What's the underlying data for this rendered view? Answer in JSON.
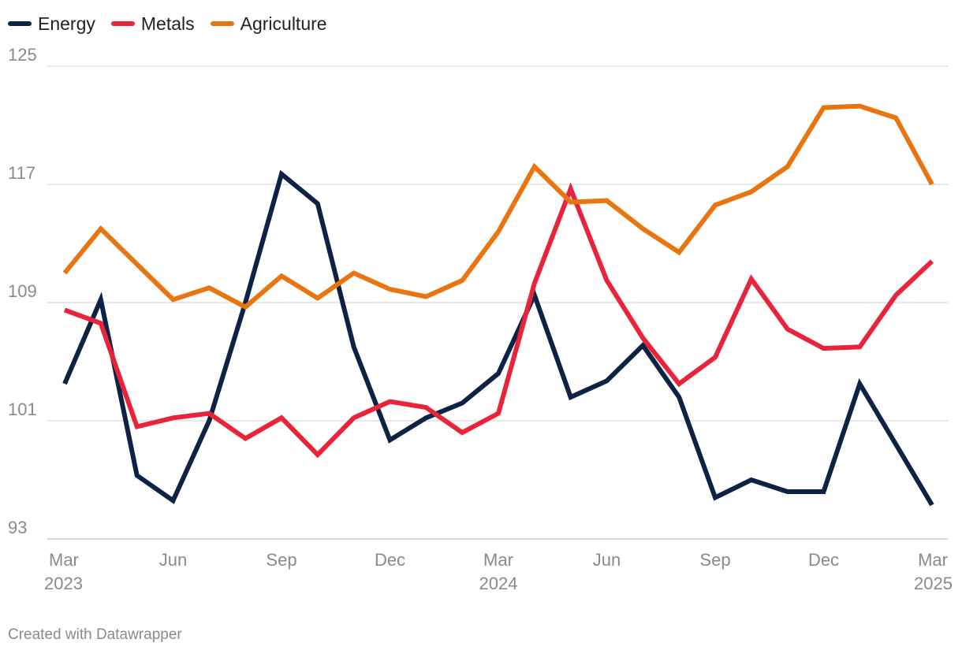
{
  "chart_data": {
    "type": "line",
    "x": [
      "2023-03",
      "2023-04",
      "2023-05",
      "2023-06",
      "2023-07",
      "2023-08",
      "2023-09",
      "2023-10",
      "2023-11",
      "2023-12",
      "2024-01",
      "2024-02",
      "2024-03",
      "2024-04",
      "2024-05",
      "2024-06",
      "2024-07",
      "2024-08",
      "2024-09",
      "2024-10",
      "2024-11",
      "2024-12",
      "2025-01",
      "2025-02",
      "2025-03"
    ],
    "series": [
      {
        "name": "Energy",
        "color": "#0d2244",
        "values": [
          103.5,
          109.2,
          97.3,
          95.6,
          101.0,
          109.0,
          117.7,
          115.7,
          106.0,
          99.7,
          101.2,
          102.2,
          104.2,
          109.5,
          102.6,
          103.7,
          106.1,
          102.6,
          95.8,
          97.0,
          96.2,
          96.2,
          103.5,
          99.4,
          95.3
        ]
      },
      {
        "name": "Metals",
        "color": "#e8233a",
        "values": [
          108.5,
          107.6,
          100.6,
          101.2,
          101.5,
          99.8,
          101.2,
          98.7,
          101.2,
          102.3,
          101.9,
          100.2,
          101.5,
          110.3,
          116.7,
          110.5,
          106.6,
          103.5,
          105.3,
          110.6,
          107.2,
          105.9,
          106.0,
          109.5,
          111.8
        ]
      },
      {
        "name": "Agriculture",
        "color": "#e8750f",
        "values": [
          111.0,
          114.0,
          111.6,
          109.2,
          110.0,
          108.7,
          110.8,
          109.3,
          111.0,
          109.9,
          109.4,
          110.5,
          113.8,
          118.2,
          115.8,
          115.9,
          114.0,
          112.4,
          115.6,
          116.5,
          118.2,
          122.2,
          122.3,
          121.5,
          117.0
        ]
      }
    ],
    "ylim": [
      93,
      125
    ],
    "y_ticks": [
      "93",
      "101",
      "109",
      "117",
      "125"
    ],
    "x_tick_labels": [
      {
        "index": 0,
        "month": "Mar",
        "year": "2023"
      },
      {
        "index": 3,
        "month": "Jun",
        "year": ""
      },
      {
        "index": 6,
        "month": "Sep",
        "year": ""
      },
      {
        "index": 9,
        "month": "Dec",
        "year": ""
      },
      {
        "index": 12,
        "month": "Mar",
        "year": "2024"
      },
      {
        "index": 15,
        "month": "Jun",
        "year": ""
      },
      {
        "index": 18,
        "month": "Sep",
        "year": ""
      },
      {
        "index": 21,
        "month": "Dec",
        "year": ""
      },
      {
        "index": 24,
        "month": "Mar",
        "year": "2025"
      }
    ],
    "grid": true,
    "legend_position": "top-left",
    "title": "",
    "xlabel": "",
    "ylabel": ""
  },
  "footer": {
    "credit": "Created with Datawrapper"
  },
  "colors": {
    "grid": "#e0e0e0",
    "axis_text": "#8a8a8a",
    "baseline": "#cccccc"
  }
}
